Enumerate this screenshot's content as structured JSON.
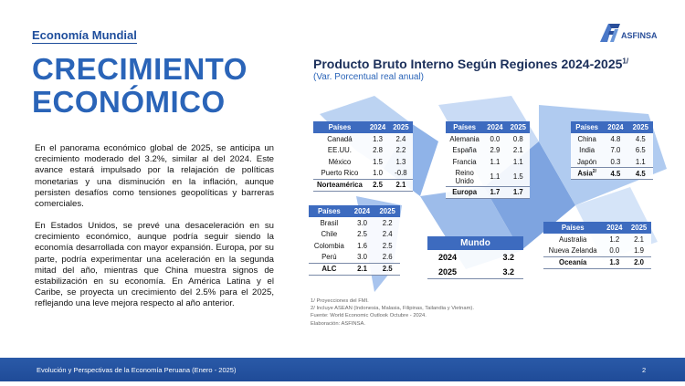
{
  "header": {
    "section": "Economía Mundial",
    "title_line1": "CRECIMIENTO",
    "title_line2": "ECONÓMICO",
    "logo_text": "ASFINSA"
  },
  "body": {
    "paragraph1": "En el panorama económico global de 2025, se anticipa un crecimiento moderado del 3.2%, similar al del 2024. Este avance estará impulsado por la relajación de políticas monetarias y una disminución en la inflación, aunque persisten desafíos como tensiones geopolíticas y barreras comerciales.",
    "paragraph2": "En Estados Unidos, se prevé una desaceleración en su crecimiento económico, aunque podría seguir siendo la economía desarrollada con mayor expansión. Europa, por su parte, podría experimentar una aceleración en la segunda mitad del año, mientras que China muestra signos de estabilización en su economía. En América Latina y el Caribe, se proyecta un crecimiento del 2.5% para el 2025, reflejando una leve mejora respecto al año anterior."
  },
  "chart": {
    "title": "Producto Bruto Interno Según Regiones 2024-2025",
    "title_sup": "1/",
    "subtitle": "(Var. Porcentual real anual)",
    "headers": [
      "Países",
      "2024",
      "2025"
    ],
    "tables": {
      "norteamerica": {
        "rows": [
          [
            "Canadá",
            "1.3",
            "2.4"
          ],
          [
            "EE.UU.",
            "2.8",
            "2.2"
          ],
          [
            "México",
            "1.5",
            "1.3"
          ],
          [
            "Puerto Rico",
            "1.0",
            "-0.8"
          ]
        ],
        "total": [
          "Norteamérica",
          "2.5",
          "2.1"
        ]
      },
      "europa": {
        "rows": [
          [
            "Alemania",
            "0.0",
            "0.8"
          ],
          [
            "España",
            "2.9",
            "2.1"
          ],
          [
            "Francia",
            "1.1",
            "1.1"
          ],
          [
            "Reino Unido",
            "1.1",
            "1.5"
          ]
        ],
        "total": [
          "Europa",
          "1.7",
          "1.7"
        ]
      },
      "asia": {
        "rows": [
          [
            "China",
            "4.8",
            "4.5"
          ],
          [
            "India",
            "7.0",
            "6.5"
          ],
          [
            "Japón",
            "0.3",
            "1.1"
          ]
        ],
        "total": [
          "Asia",
          "4.5",
          "4.5"
        ],
        "total_sup": "2/"
      },
      "alc": {
        "rows": [
          [
            "Brasil",
            "3.0",
            "2.2"
          ],
          [
            "Chile",
            "2.5",
            "2.4"
          ],
          [
            "Colombia",
            "1.6",
            "2.5"
          ],
          [
            "Perú",
            "3.0",
            "2.6"
          ]
        ],
        "total": [
          "ALC",
          "2.1",
          "2.5"
        ]
      },
      "oceania": {
        "rows": [
          [
            "Australia",
            "1.2",
            "2.1"
          ],
          [
            "Nueva Zelanda",
            "0.0",
            "1.9"
          ]
        ],
        "total": [
          "Oceanía",
          "1.3",
          "2.0"
        ]
      }
    },
    "mundo": {
      "title": "Mundo",
      "rows": [
        [
          "2024",
          "3.2"
        ],
        [
          "2025",
          "3.2"
        ]
      ]
    },
    "notes": [
      "1/ Proyecciones del FMI.",
      "2/ Incluye ASEAN (Indonesia, Malasia, Filipinas, Tailandia y Vietnam).",
      "Fuente: World Economic Outlook Octubre - 2024.",
      "Elaboración: ASFINSA."
    ]
  },
  "footer": {
    "text": "Evolución y Perspectivas de la Economía Peruana (Enero - 2025)",
    "page": "2"
  },
  "colors": {
    "primary": "#2a64b8",
    "header_fill": "#3d6bbf",
    "footer": "#1f4b98"
  }
}
